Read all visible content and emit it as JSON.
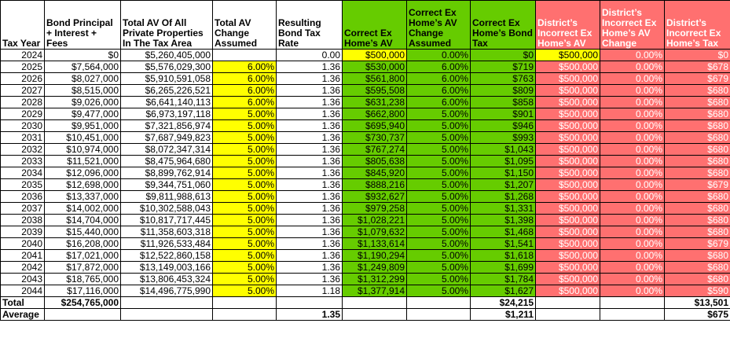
{
  "columns": [
    {
      "key": "year",
      "label": "Tax Year"
    },
    {
      "key": "principal",
      "label": "Bond Principal + Interest + Fees"
    },
    {
      "key": "total_av",
      "label": "Total AV Of All Private Properties In The Tax Area"
    },
    {
      "key": "av_change",
      "label": "Total AV Change Assumed"
    },
    {
      "key": "tax_rate",
      "label": "Resulting Bond Tax Rate"
    },
    {
      "key": "correct_av",
      "label": "Correct Ex Home’s AV"
    },
    {
      "key": "correct_change",
      "label": "Correct Ex Home’s AV Change Assumed"
    },
    {
      "key": "correct_tax",
      "label": "Correct Ex Home’s Bond Tax"
    },
    {
      "key": "district_av",
      "label": "District’s Incorrect Ex Home’s AV"
    },
    {
      "key": "district_change",
      "label": "District’s Incorrect Ex Home’s AV Change"
    },
    {
      "key": "district_tax",
      "label": "District’s Incorrect Ex Home’s Tax"
    }
  ],
  "rows": [
    [
      "2024",
      "$0",
      "$5,260,405,000",
      "",
      "0.00",
      "$500,000",
      "0.00%",
      "$0",
      "$500,000",
      "0.00%",
      "$0"
    ],
    [
      "2025",
      "$7,564,000",
      "$5,576,029,300",
      "6.00%",
      "1.36",
      "$530,000",
      "6.00%",
      "$719",
      "$500,000",
      "0.00%",
      "$678"
    ],
    [
      "2026",
      "$8,027,000",
      "$5,910,591,058",
      "6.00%",
      "1.36",
      "$561,800",
      "6.00%",
      "$763",
      "$500,000",
      "0.00%",
      "$679"
    ],
    [
      "2027",
      "$8,515,000",
      "$6,265,226,521",
      "6.00%",
      "1.36",
      "$595,508",
      "6.00%",
      "$809",
      "$500,000",
      "0.00%",
      "$680"
    ],
    [
      "2028",
      "$9,026,000",
      "$6,641,140,113",
      "6.00%",
      "1.36",
      "$631,238",
      "6.00%",
      "$858",
      "$500,000",
      "0.00%",
      "$680"
    ],
    [
      "2029",
      "$9,477,000",
      "$6,973,197,118",
      "5.00%",
      "1.36",
      "$662,800",
      "5.00%",
      "$901",
      "$500,000",
      "0.00%",
      "$680"
    ],
    [
      "2030",
      "$9,951,000",
      "$7,321,856,974",
      "5.00%",
      "1.36",
      "$695,940",
      "5.00%",
      "$946",
      "$500,000",
      "0.00%",
      "$680"
    ],
    [
      "2031",
      "$10,451,000",
      "$7,687,949,823",
      "5.00%",
      "1.36",
      "$730,737",
      "5.00%",
      "$993",
      "$500,000",
      "0.00%",
      "$680"
    ],
    [
      "2032",
      "$10,974,000",
      "$8,072,347,314",
      "5.00%",
      "1.36",
      "$767,274",
      "5.00%",
      "$1,043",
      "$500,000",
      "0.00%",
      "$680"
    ],
    [
      "2033",
      "$11,521,000",
      "$8,475,964,680",
      "5.00%",
      "1.36",
      "$805,638",
      "5.00%",
      "$1,095",
      "$500,000",
      "0.00%",
      "$680"
    ],
    [
      "2034",
      "$12,096,000",
      "$8,899,762,914",
      "5.00%",
      "1.36",
      "$845,920",
      "5.00%",
      "$1,150",
      "$500,000",
      "0.00%",
      "$680"
    ],
    [
      "2035",
      "$12,698,000",
      "$9,344,751,060",
      "5.00%",
      "1.36",
      "$888,216",
      "5.00%",
      "$1,207",
      "$500,000",
      "0.00%",
      "$679"
    ],
    [
      "2036",
      "$13,337,000",
      "$9,811,988,613",
      "5.00%",
      "1.36",
      "$932,627",
      "5.00%",
      "$1,268",
      "$500,000",
      "0.00%",
      "$680"
    ],
    [
      "2037",
      "$14,002,000",
      "$10,302,588,043",
      "5.00%",
      "1.36",
      "$979,258",
      "5.00%",
      "$1,331",
      "$500,000",
      "0.00%",
      "$680"
    ],
    [
      "2038",
      "$14,704,000",
      "$10,817,717,445",
      "5.00%",
      "1.36",
      "$1,028,221",
      "5.00%",
      "$1,398",
      "$500,000",
      "0.00%",
      "$680"
    ],
    [
      "2039",
      "$15,440,000",
      "$11,358,603,318",
      "5.00%",
      "1.36",
      "$1,079,632",
      "5.00%",
      "$1,468",
      "$500,000",
      "0.00%",
      "$680"
    ],
    [
      "2040",
      "$16,208,000",
      "$11,926,533,484",
      "5.00%",
      "1.36",
      "$1,133,614",
      "5.00%",
      "$1,541",
      "$500,000",
      "0.00%",
      "$679"
    ],
    [
      "2041",
      "$17,021,000",
      "$12,522,860,158",
      "5.00%",
      "1.36",
      "$1,190,294",
      "5.00%",
      "$1,618",
      "$500,000",
      "0.00%",
      "$680"
    ],
    [
      "2042",
      "$17,872,000",
      "$13,149,003,166",
      "5.00%",
      "1.36",
      "$1,249,809",
      "5.00%",
      "$1,699",
      "$500,000",
      "0.00%",
      "$680"
    ],
    [
      "2043",
      "$18,765,000",
      "$13,806,453,324",
      "5.00%",
      "1.36",
      "$1,312,299",
      "5.00%",
      "$1,784",
      "$500,000",
      "0.00%",
      "$680"
    ],
    [
      "2044",
      "$17,116,000",
      "$14,496,775,990",
      "5.00%",
      "1.18",
      "$1,377,914",
      "5.00%",
      "$1,627",
      "$500,000",
      "0.00%",
      "$590"
    ]
  ],
  "total": {
    "label": "Total",
    "principal": "$254,765,000",
    "correct_tax": "$24,215",
    "district_tax": "$13,501"
  },
  "average": {
    "label": "Average",
    "tax_rate": "1.35",
    "correct_tax": "$1,211",
    "district_tax": "$675"
  },
  "colors": {
    "yellow": "#ffff00",
    "green": "#66cc00",
    "pink": "#ff7070"
  }
}
